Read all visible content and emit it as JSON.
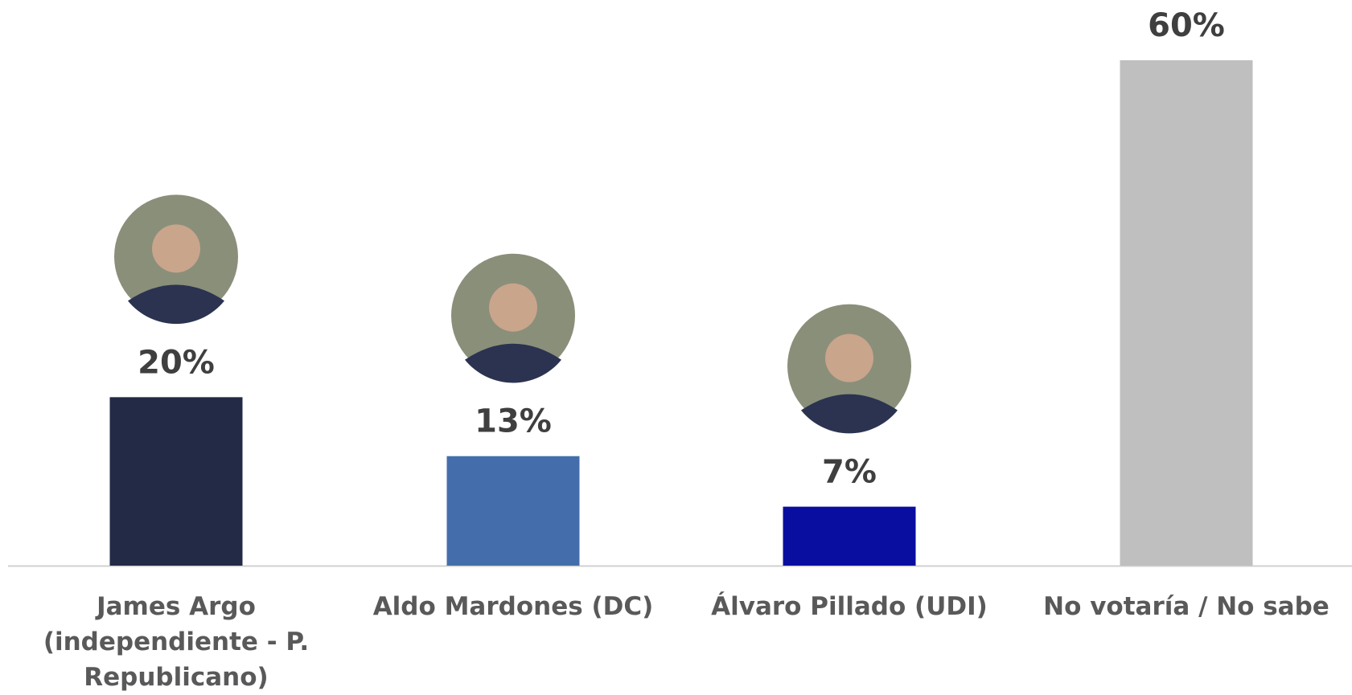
{
  "chart_data": {
    "type": "bar",
    "categories": [
      "James Argo (independiente - P. Republicano)",
      "Aldo Mardones (DC)",
      "Álvaro Pillado (UDI)",
      "No votaría / No sabe"
    ],
    "values": [
      20,
      13,
      7,
      60
    ],
    "value_labels": [
      "20%",
      "13%",
      "7%",
      "60%"
    ],
    "colors": [
      "#232a45",
      "#446eab",
      "#0a0ea0",
      "#bfbfbf"
    ]
  }
}
